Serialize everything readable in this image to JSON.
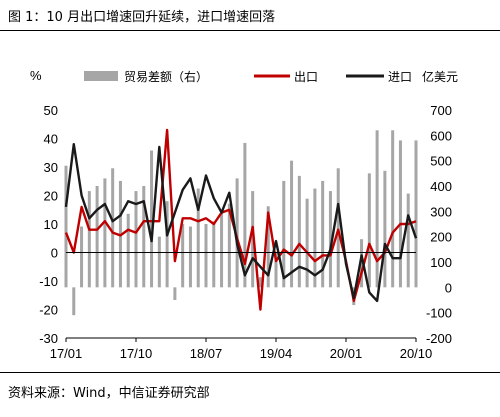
{
  "title": "图 1：10 月出口增速回升延续，进口增速回落",
  "source": "资料来源：Wind，中信证券研究部",
  "chart_data": {
    "type": "bar+line",
    "left_axis_unit": "%",
    "right_axis_unit": "亿美元",
    "left_ylim": [
      -30,
      50
    ],
    "left_yticks": [
      -30,
      -20,
      -10,
      0,
      10,
      20,
      30,
      40,
      50
    ],
    "right_ylim": [
      -200,
      700
    ],
    "right_yticks": [
      -200,
      -100,
      0,
      100,
      200,
      300,
      400,
      500,
      600,
      700
    ],
    "x_tick_labels": [
      "17/01",
      "17/10",
      "18/07",
      "19/04",
      "20/01",
      "20/10"
    ],
    "x_tick_indices": [
      0,
      9,
      18,
      27,
      36,
      45
    ],
    "legend": [
      "贸易差额（右）",
      "出口",
      "进口"
    ],
    "colors": {
      "trade_balance": "#a6a6a6",
      "export": "#c00000",
      "import": "#1a1a1a"
    },
    "periods": [
      "17/01",
      "17/02",
      "17/03",
      "17/04",
      "17/05",
      "17/06",
      "17/07",
      "17/08",
      "17/09",
      "17/10",
      "17/11",
      "17/12",
      "18/01",
      "18/02",
      "18/03",
      "18/04",
      "18/05",
      "18/06",
      "18/07",
      "18/08",
      "18/09",
      "18/10",
      "18/11",
      "18/12",
      "19/01",
      "19/02",
      "19/03",
      "19/04",
      "19/05",
      "19/06",
      "19/07",
      "19/08",
      "19/09",
      "19/10",
      "19/11",
      "19/12",
      "20/01",
      "20/02",
      "20/03",
      "20/04",
      "20/05",
      "20/06",
      "20/07",
      "20/08",
      "20/09",
      "20/10"
    ],
    "series": [
      {
        "name": "贸易差额（右）",
        "axis": "right",
        "kind": "bar",
        "values": [
          480,
          -110,
          240,
          380,
          400,
          430,
          470,
          420,
          290,
          380,
          400,
          540,
          200,
          340,
          -50,
          250,
          240,
          390,
          250,
          260,
          300,
          330,
          430,
          570,
          380,
          40,
          320,
          140,
          420,
          500,
          440,
          350,
          390,
          420,
          380,
          470,
          null,
          -70,
          190,
          450,
          620,
          460,
          620,
          580,
          370,
          580
        ]
      },
      {
        "name": "出口",
        "axis": "left",
        "kind": "line",
        "values": [
          7,
          0,
          16,
          8,
          8,
          11,
          7,
          6,
          8,
          7,
          11,
          11,
          11,
          43,
          -3,
          12,
          12,
          11,
          12,
          10,
          14,
          15,
          5,
          -4,
          9,
          -20,
          14,
          -3,
          1,
          -1,
          3,
          0,
          -3,
          -1,
          -1,
          8,
          -3,
          -17,
          -7,
          3,
          -3,
          0,
          7,
          10,
          10,
          11
        ]
      },
      {
        "name": "进口",
        "axis": "left",
        "kind": "line",
        "values": [
          16,
          38,
          20,
          12,
          15,
          17,
          11,
          13,
          18,
          17,
          18,
          4,
          37,
          6,
          14,
          22,
          26,
          15,
          27,
          19,
          14,
          21,
          3,
          -8,
          -2,
          -5,
          -8,
          4,
          -9,
          -7,
          -5,
          -6,
          -8,
          -6,
          1,
          17,
          -4,
          -16,
          -1,
          -14,
          -17,
          3,
          -2,
          -2,
          13,
          5
        ]
      }
    ]
  }
}
